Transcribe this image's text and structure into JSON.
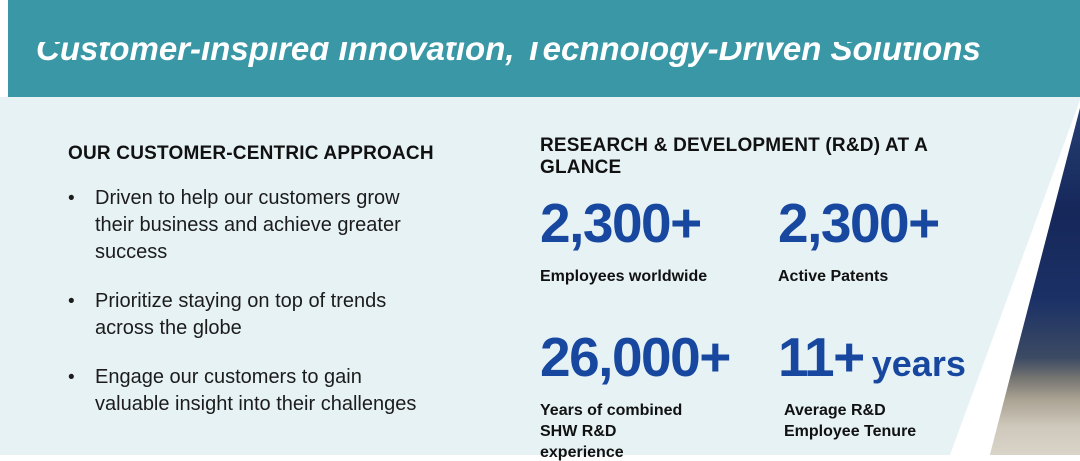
{
  "header": {
    "title": "Customer-Inspired Innovation, Technology-Driven Solutions"
  },
  "approach": {
    "heading": "OUR CUSTOMER-CENTRIC APPROACH",
    "bullets": [
      "Driven to help our customers grow their business and achieve greater success",
      "Prioritize staying on top of trends across the globe",
      "Engage our customers to gain valuable insight into their challenges"
    ],
    "bullet_glyph": "•"
  },
  "rd": {
    "heading": "RESEARCH & DEVELOPMENT (R&D) AT A GLANCE",
    "stats": [
      {
        "value": "2,300+",
        "unit": "",
        "label": "Employees worldwide"
      },
      {
        "value": "2,300+",
        "unit": "",
        "label": "Active Patents"
      },
      {
        "value": "26,000+",
        "unit": "",
        "label": "Years of combined SHW R&D experience"
      },
      {
        "value": "11+",
        "unit": "years",
        "label": "Average R&D Employee Tenure"
      }
    ]
  },
  "colors": {
    "banner_teal": "#3997a6",
    "band_light_blue": "#e7f2f5",
    "stat_blue": "#17479f",
    "text_dark": "#1a1a1a",
    "photo_navy": "#1b2f63",
    "photo_tan": "#d6d0c4"
  }
}
